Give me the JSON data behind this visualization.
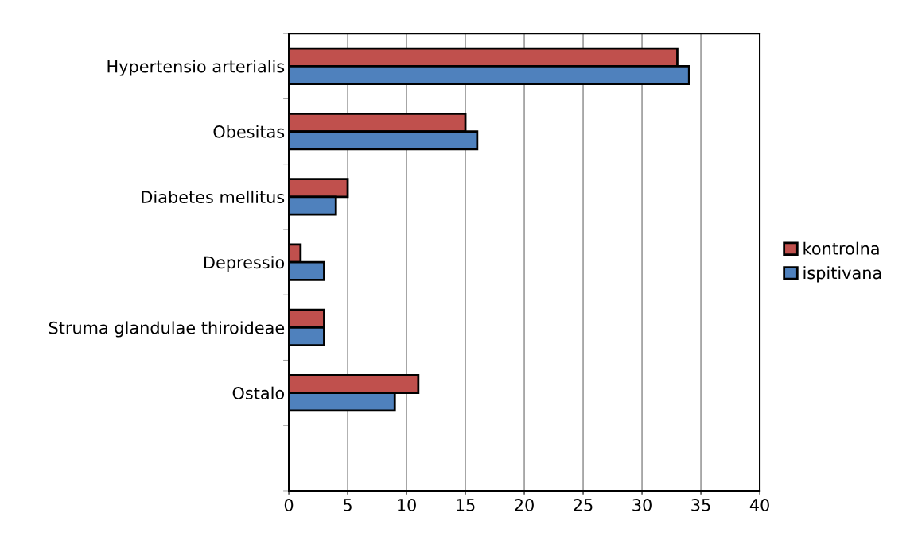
{
  "chart_data": {
    "type": "bar",
    "orientation": "horizontal",
    "categories": [
      "Hypertensio arterialis",
      "Obesitas",
      "Diabetes mellitus",
      "Depressio",
      "Struma glandulae thiroideae",
      "Ostalo",
      null
    ],
    "series": [
      {
        "name": "kontrolna",
        "color": "#c0504d",
        "values": [
          33,
          15,
          5,
          1,
          3,
          11,
          null
        ]
      },
      {
        "name": "ispitivana",
        "color": "#4f81bd",
        "values": [
          34,
          16,
          4,
          3,
          3,
          9,
          null
        ]
      }
    ],
    "xlim": [
      0,
      40
    ],
    "xticks": [
      0,
      5,
      10,
      15,
      20,
      25,
      30,
      35,
      40
    ],
    "grid": "x",
    "legend": "right"
  }
}
